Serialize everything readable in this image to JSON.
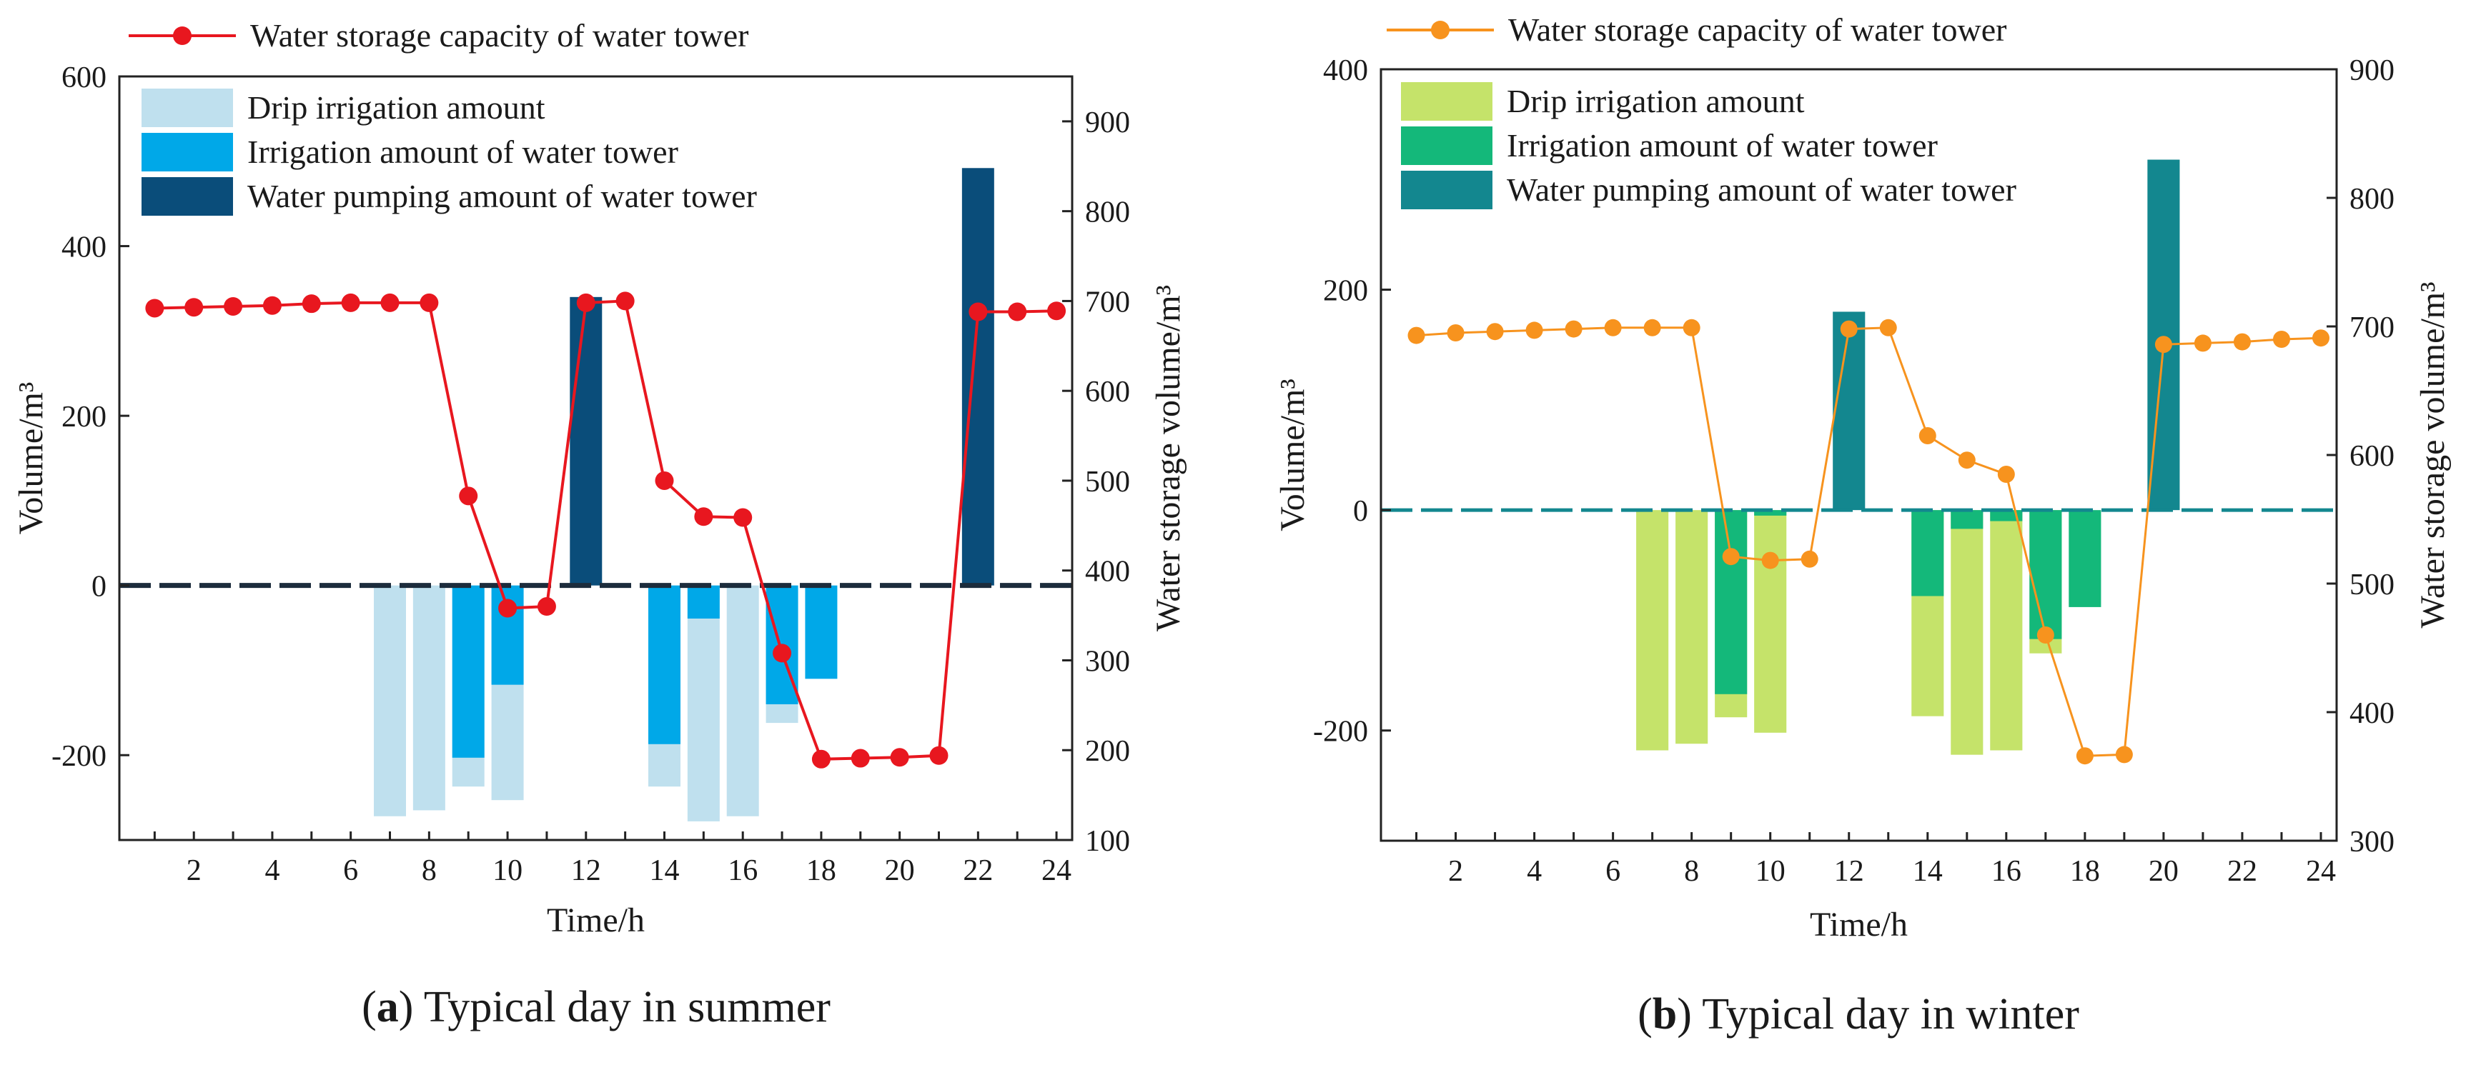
{
  "figure": {
    "panels": [
      {
        "label_letter": "a",
        "caption_rest": " Typical day in summer"
      },
      {
        "label_letter": "b",
        "caption_rest": " Typical day in winter"
      }
    ]
  },
  "chart_data": [
    {
      "type": "bar",
      "title": "(a) Typical day in summer",
      "xlabel": "Time/h",
      "ylabel": "Volume/m³",
      "y2label": "Water storage volume/m³",
      "x": [
        1,
        2,
        3,
        4,
        5,
        6,
        7,
        8,
        9,
        10,
        11,
        12,
        13,
        14,
        15,
        16,
        17,
        18,
        19,
        20,
        21,
        22,
        23,
        24
      ],
      "xticks": [
        2,
        4,
        6,
        8,
        10,
        12,
        14,
        16,
        18,
        20,
        22,
        24
      ],
      "xlim": [
        0.1,
        24.4
      ],
      "ylim": [
        -300,
        600
      ],
      "yticks": [
        -200,
        0,
        200,
        400,
        600
      ],
      "y2lim": [
        100,
        950
      ],
      "y2ticks": [
        100,
        200,
        300,
        400,
        500,
        600,
        700,
        800,
        900
      ],
      "colors": {
        "drip": "#bfe0ee",
        "tower_irrigation": "#00a8e8",
        "pumping": "#0a4d7a",
        "storage": "#e8171f",
        "zero_line": "#1c2c3c"
      },
      "series": [
        {
          "name": "Drip irrigation amount",
          "key": "drip",
          "values": [
            0,
            0,
            0,
            0,
            0,
            0,
            -272,
            -265,
            -237,
            -253,
            0,
            0,
            0,
            -237,
            -278,
            -272,
            -162,
            0,
            0,
            0,
            0,
            0,
            0,
            0
          ]
        },
        {
          "name": "Irrigation amount of water tower",
          "key": "tower_irrigation",
          "values": [
            0,
            0,
            0,
            0,
            0,
            0,
            0,
            0,
            -203,
            -117,
            0,
            0,
            0,
            -187,
            -39,
            0,
            -140,
            -110,
            0,
            0,
            0,
            0,
            0,
            0
          ]
        },
        {
          "name": "Water pumping amount of water tower",
          "key": "pumping",
          "values": [
            0,
            0,
            0,
            0,
            0,
            0,
            0,
            0,
            0,
            0,
            0,
            340,
            0,
            0,
            0,
            0,
            0,
            0,
            0,
            0,
            0,
            492,
            0,
            0
          ]
        },
        {
          "name": "Water storage capacity of water tower",
          "key": "storage",
          "type": "line",
          "axis": "right",
          "values": [
            692,
            693,
            694,
            695,
            697,
            698,
            698,
            698,
            483,
            358,
            360,
            698,
            700,
            500,
            460,
            459,
            308,
            190,
            191,
            192,
            194,
            688,
            688,
            689
          ]
        }
      ]
    },
    {
      "type": "bar",
      "title": "(b) Typical day in winter",
      "xlabel": "Time/h",
      "ylabel": "Volume/m³",
      "y2label": "Water storage volume/m³",
      "x": [
        1,
        2,
        3,
        4,
        5,
        6,
        7,
        8,
        9,
        10,
        11,
        12,
        13,
        14,
        15,
        16,
        17,
        18,
        19,
        20,
        21,
        22,
        23,
        24
      ],
      "xticks": [
        2,
        4,
        6,
        8,
        10,
        12,
        14,
        16,
        18,
        20,
        22,
        24
      ],
      "xlim": [
        0.1,
        24.4
      ],
      "ylim": [
        -300,
        400
      ],
      "yticks": [
        -200,
        0,
        200,
        400
      ],
      "y2lim": [
        300,
        900
      ],
      "y2ticks": [
        300,
        400,
        500,
        600,
        700,
        800,
        900
      ],
      "colors": {
        "drip": "#c5e36a",
        "tower_irrigation": "#14b87a",
        "pumping": "#13878f",
        "storage": "#f7931e",
        "zero_line": "#13878f"
      },
      "series": [
        {
          "name": "Drip irrigation amount",
          "key": "drip",
          "values": [
            0,
            0,
            0,
            0,
            0,
            0,
            -218,
            -212,
            -188,
            -202,
            0,
            0,
            0,
            -187,
            -222,
            -218,
            -130,
            0,
            0,
            0,
            0,
            0,
            0,
            0
          ]
        },
        {
          "name": "Irrigation amount of water tower",
          "key": "tower_irrigation",
          "values": [
            0,
            0,
            0,
            0,
            0,
            0,
            0,
            0,
            -167,
            -5,
            0,
            0,
            0,
            -78,
            -17,
            -10,
            -117,
            -88,
            0,
            0,
            0,
            0,
            0,
            0
          ]
        },
        {
          "name": "Water pumping amount of water tower",
          "key": "pumping",
          "values": [
            0,
            0,
            0,
            0,
            0,
            0,
            0,
            0,
            0,
            0,
            0,
            180,
            0,
            0,
            0,
            0,
            0,
            0,
            0,
            318,
            0,
            0,
            0,
            0
          ]
        },
        {
          "name": "Water storage capacity of water tower",
          "key": "storage",
          "type": "line",
          "axis": "right",
          "values": [
            693,
            695,
            696,
            697,
            698,
            699,
            699,
            699,
            521,
            518,
            519,
            698,
            699,
            615,
            596,
            585,
            460,
            366,
            367,
            686,
            687,
            688,
            690,
            691
          ]
        }
      ]
    }
  ]
}
